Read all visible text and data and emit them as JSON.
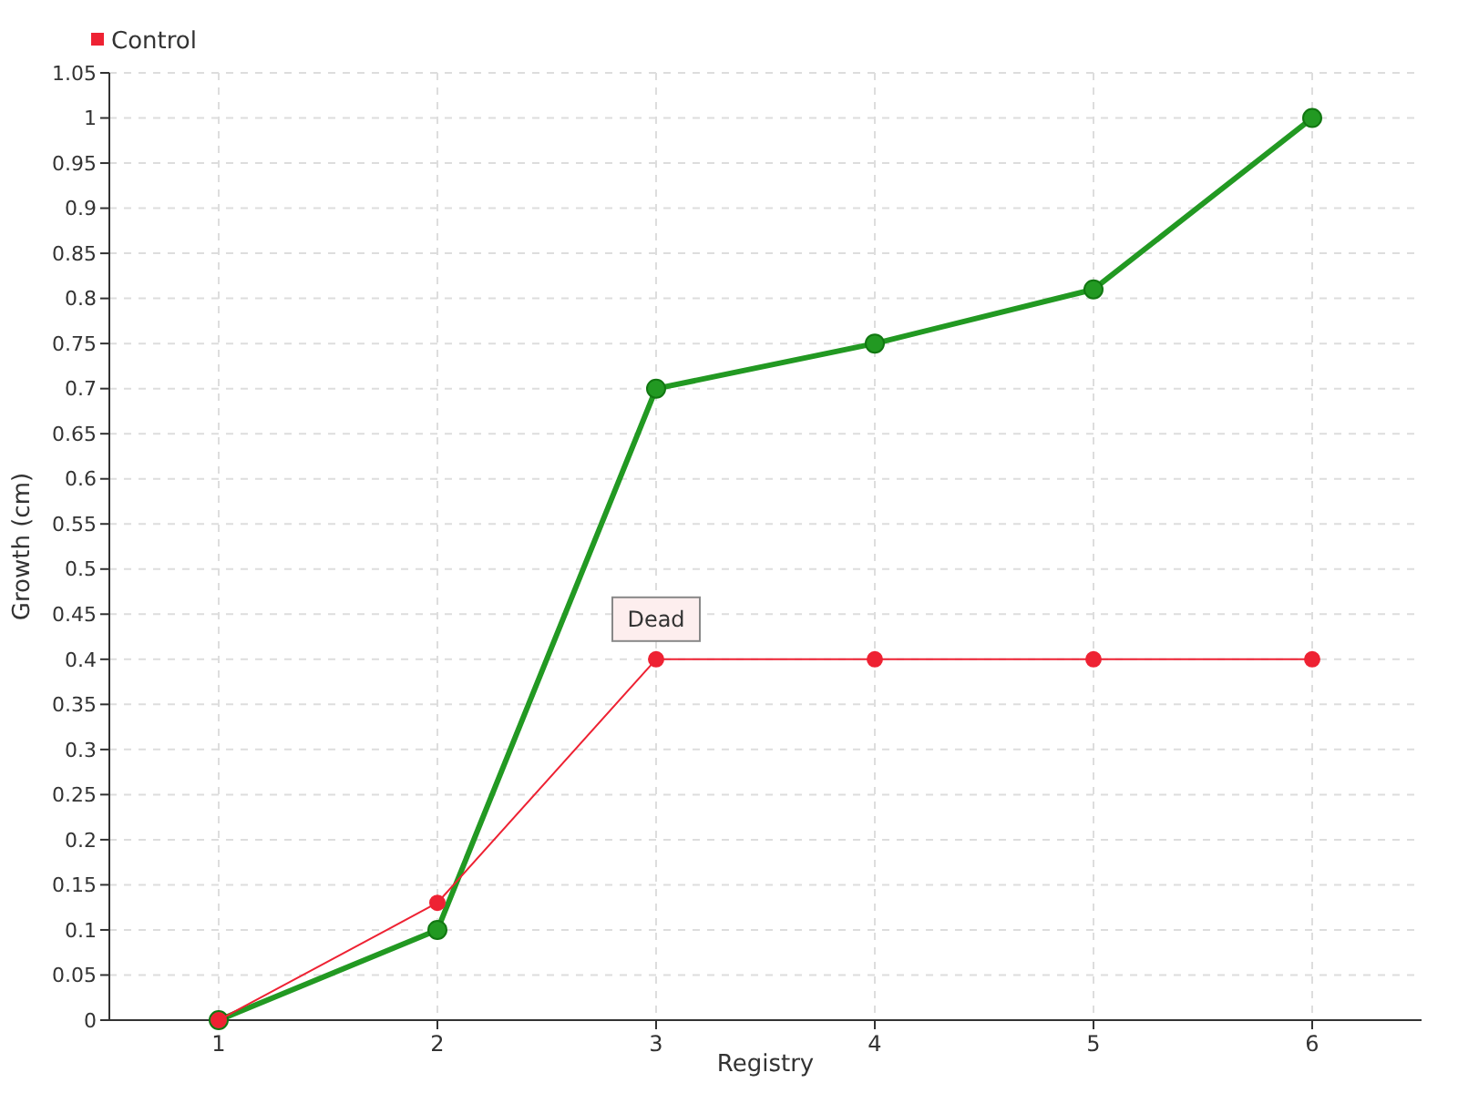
{
  "chart_data": {
    "type": "line",
    "xlabel": "Registry",
    "ylabel": "Growth (cm)",
    "x": [
      1,
      2,
      3,
      4,
      5,
      6
    ],
    "series": [
      {
        "color": "#229922",
        "values": [
          0,
          0.1,
          0.7,
          0.75,
          0.81,
          1.0
        ]
      },
      {
        "name": "Control",
        "color": "#ee2233",
        "values": [
          0,
          0.13,
          0.4,
          0.4,
          0.4,
          0.4
        ]
      }
    ],
    "xlim": [
      0.5,
      6.5
    ],
    "xticks": [
      1,
      2,
      3,
      4,
      5,
      6
    ],
    "ylim": [
      0,
      1.05
    ],
    "yticks": [
      0,
      0.05,
      0.1,
      0.15,
      0.2,
      0.25,
      0.3,
      0.35,
      0.4,
      0.45,
      0.5,
      0.55,
      0.6,
      0.65,
      0.7,
      0.75,
      0.8,
      0.85,
      0.9,
      0.95,
      1,
      1.05
    ],
    "grid": true,
    "legend": "top left",
    "marker": "circle",
    "line_style": "solid",
    "annotations": [
      {
        "text": "Dead",
        "x": 3,
        "y": 0.4
      }
    ]
  }
}
